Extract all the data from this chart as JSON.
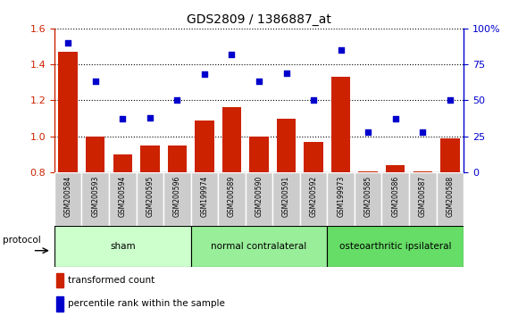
{
  "title": "GDS2809 / 1386887_at",
  "samples": [
    "GSM200584",
    "GSM200593",
    "GSM200594",
    "GSM200595",
    "GSM200596",
    "GSM199974",
    "GSM200589",
    "GSM200590",
    "GSM200591",
    "GSM200592",
    "GSM199973",
    "GSM200585",
    "GSM200586",
    "GSM200587",
    "GSM200588"
  ],
  "bar_values": [
    1.47,
    1.0,
    0.9,
    0.95,
    0.95,
    1.09,
    1.16,
    1.0,
    1.1,
    0.97,
    1.33,
    0.805,
    0.84,
    0.805,
    0.99
  ],
  "dot_values": [
    90.0,
    63.0,
    37.0,
    38.0,
    50.0,
    68.0,
    82.0,
    63.0,
    69.0,
    50.0,
    85.0,
    28.0,
    37.0,
    28.0,
    50.0
  ],
  "bar_color": "#cc2200",
  "dot_color": "#0000cc",
  "ylim_left": [
    0.8,
    1.6
  ],
  "ylim_right": [
    0,
    100
  ],
  "yticks_left": [
    0.8,
    1.0,
    1.2,
    1.4,
    1.6
  ],
  "yticks_right": [
    0,
    25,
    50,
    75,
    100
  ],
  "ytick_labels_right": [
    "0",
    "25",
    "50",
    "75",
    "100%"
  ],
  "groups": [
    {
      "label": "sham",
      "start": 0,
      "end": 5,
      "color": "#ccffcc"
    },
    {
      "label": "normal contralateral",
      "start": 5,
      "end": 10,
      "color": "#99ee99"
    },
    {
      "label": "osteoarthritic ipsilateral",
      "start": 10,
      "end": 15,
      "color": "#66dd66"
    }
  ],
  "protocol_label": "protocol",
  "legend_bar_label": "transformed count",
  "legend_dot_label": "percentile rank within the sample",
  "bar_color_legend": "#cc2200",
  "dot_color_legend": "#0000cc",
  "tick_label_color_left": "#cc2200",
  "tick_label_color_right": "#0000cc",
  "tick_bg_color": "#cccccc",
  "tick_border_color": "#ffffff"
}
